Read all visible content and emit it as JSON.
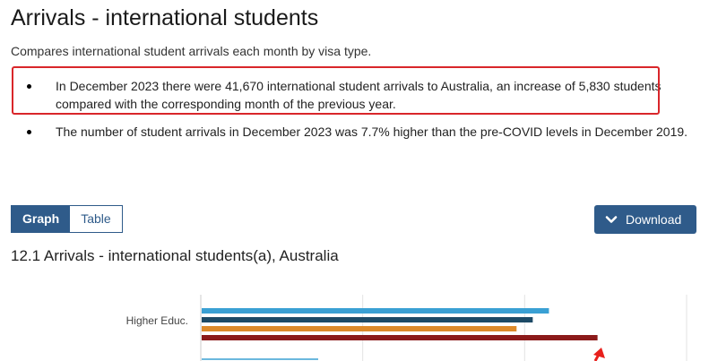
{
  "page": {
    "title": "Arrivals - international students",
    "subtitle": "Compares international student arrivals each month by visa type.",
    "bullets": [
      "In December 2023 there were 41,670 international student arrivals to Australia, an increase of 5,830 students compared with the corresponding month of the previous year.",
      "The number of student arrivals in December 2023 was 7.7% higher than the pre-COVID levels in December 2019."
    ]
  },
  "toolbar": {
    "graph_label": "Graph",
    "table_label": "Table",
    "download_label": "Download",
    "download_icon": "chevron-down-icon"
  },
  "chart_title": "12.1 Arrivals - international students(a), Australia",
  "colors": {
    "accent": "#2f5b8a",
    "highlight": "#d9262a",
    "arrow": "#e8201c"
  },
  "chart_data": {
    "type": "bar",
    "orientation": "horizontal",
    "categories": [
      "Higher Educ."
    ],
    "series": [
      {
        "values": [
          21500
        ],
        "color": "#3aa0d4"
      },
      {
        "values": [
          20500
        ],
        "color": "#1d4a66"
      },
      {
        "values": [
          19500
        ],
        "color": "#dd8a2a"
      },
      {
        "values": [
          24500
        ],
        "color": "#8b1a1a"
      }
    ],
    "xlim": [
      0,
      30000
    ],
    "grid": true,
    "note": "partially visible; cropped at bottom"
  }
}
